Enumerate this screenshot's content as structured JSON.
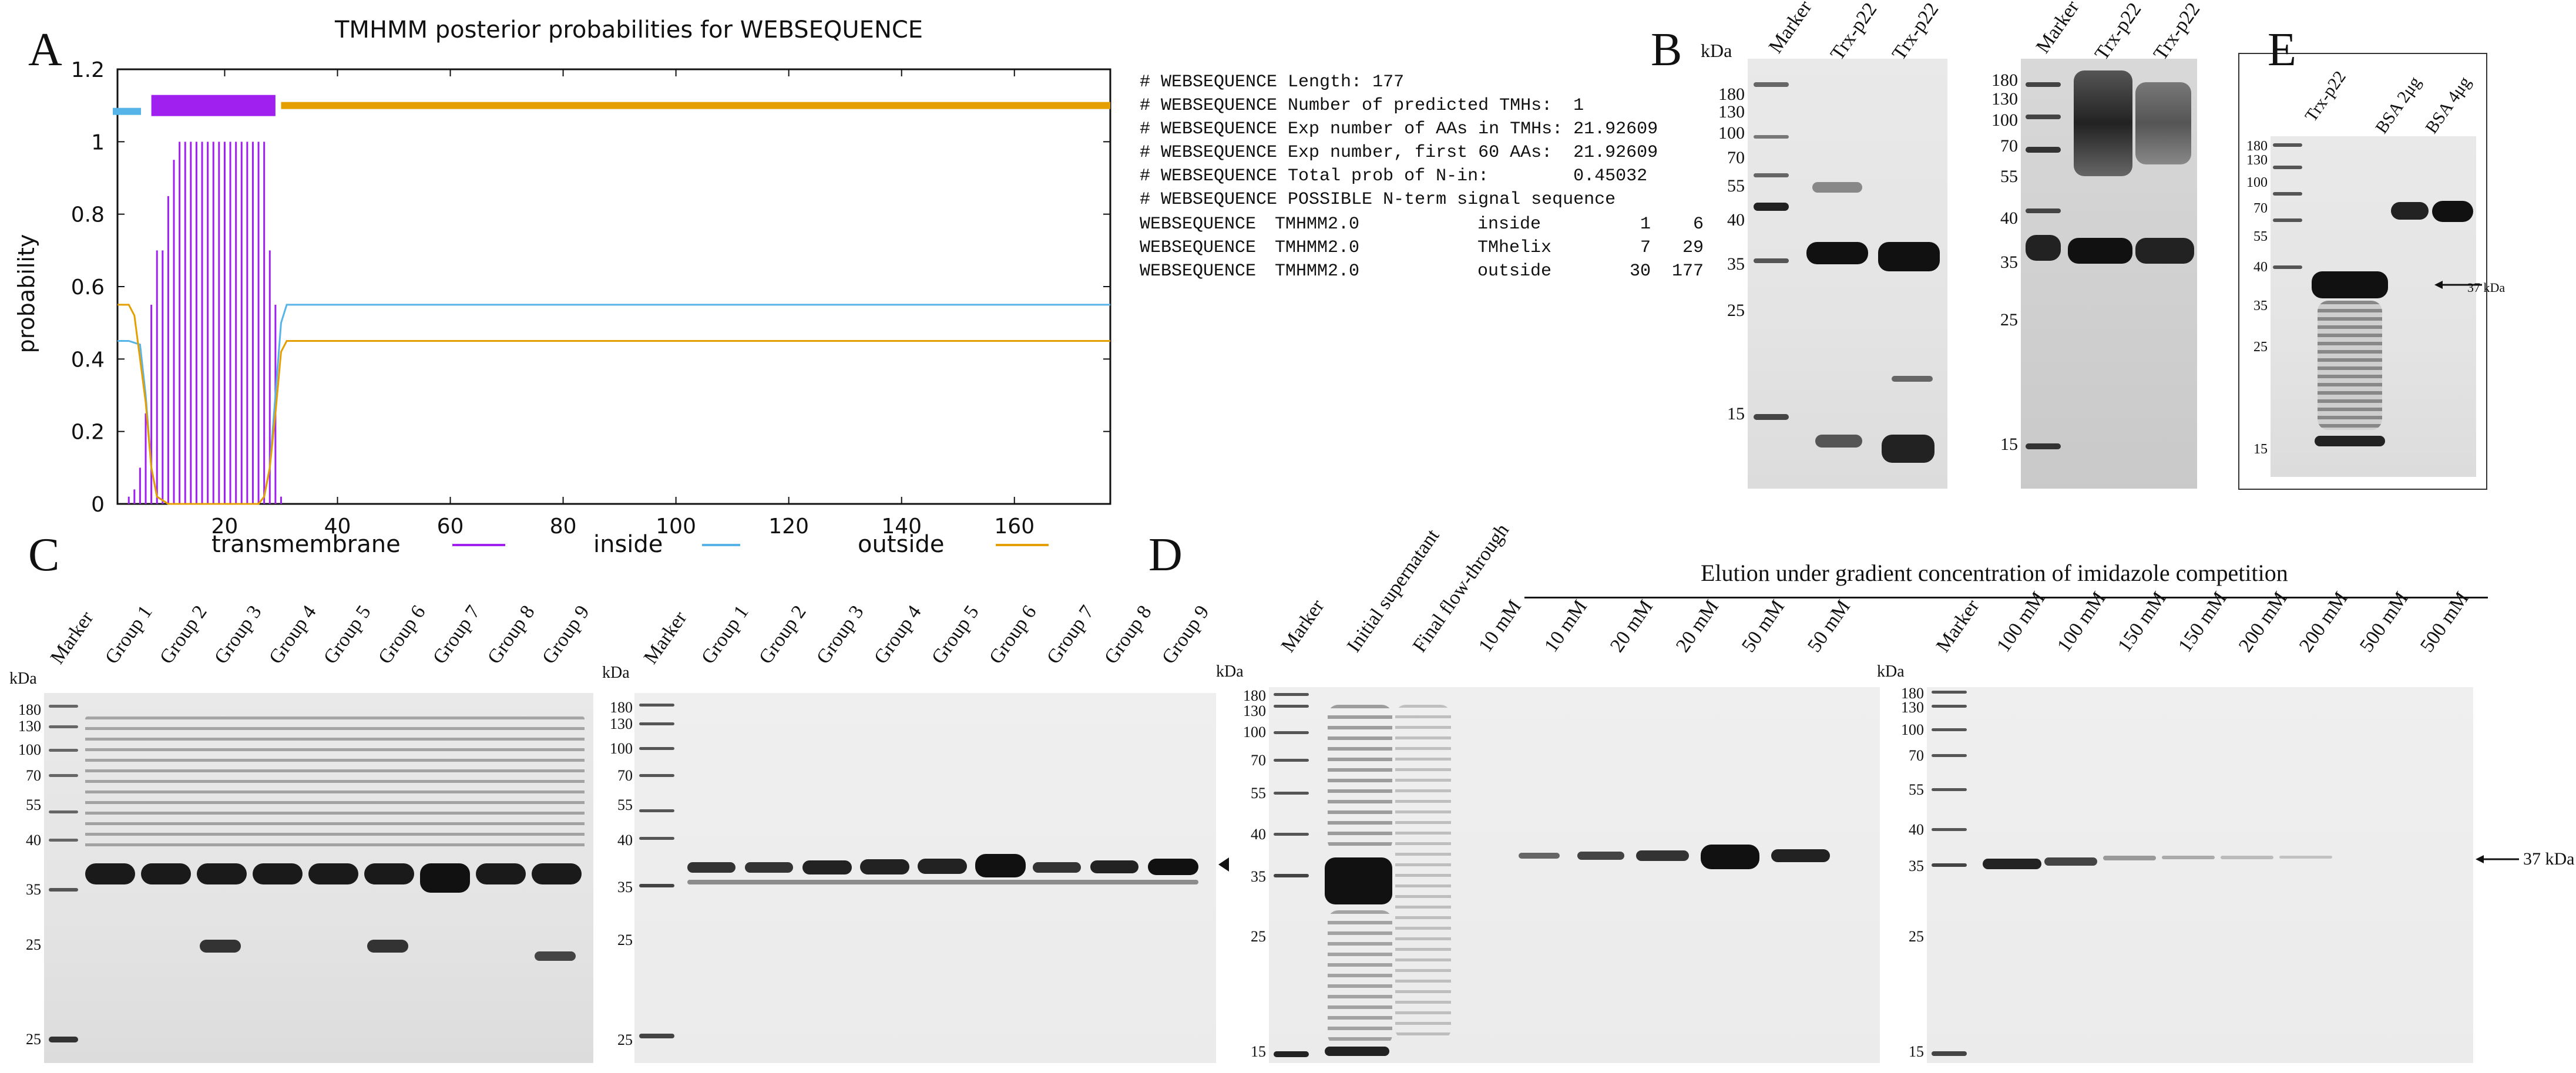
{
  "panels": {
    "A": {
      "letter": "A",
      "title": "TMHMM posterior probabilities for WEBSEQUENCE",
      "ylabel": "probability",
      "legend": [
        {
          "name": "transmembrane",
          "color": "#a020f0"
        },
        {
          "name": "inside",
          "color": "#56b4e9"
        },
        {
          "name": "outside",
          "color": "#e69f00"
        }
      ],
      "info_lines": [
        "# WEBSEQUENCE Length: 177",
        "# WEBSEQUENCE Number of predicted TMHs:  1",
        "# WEBSEQUENCE Exp number of AAs in TMHs: 21.92609",
        "# WEBSEQUENCE Exp number, first 60 AAs:  21.92609",
        "# WEBSEQUENCE Total prob of N-in:        0.45032",
        "# WEBSEQUENCE POSSIBLE N-term signal sequence"
      ],
      "topology_rows": [
        {
          "seq": "WEBSEQUENCE",
          "method": "TMHMM2.0",
          "region": "inside",
          "start": "1",
          "end": "6"
        },
        {
          "seq": "WEBSEQUENCE",
          "method": "TMHMM2.0",
          "region": "TMhelix",
          "start": "7",
          "end": "29"
        },
        {
          "seq": "WEBSEQUENCE",
          "method": "TMHMM2.0",
          "region": "outside",
          "start": "30",
          "end": "177"
        }
      ]
    },
    "B": {
      "letter": "B",
      "kda": "kDa",
      "lanes": [
        "Marker",
        "Trx-p22",
        "Trx-p22"
      ],
      "mw_left": [
        "180",
        "130",
        "100",
        "70",
        "55",
        "40",
        "35",
        "25",
        "15"
      ],
      "mw_right": [
        "180",
        "130",
        "100",
        "70",
        "55",
        "40",
        "35",
        "25",
        "15"
      ]
    },
    "E": {
      "letter": "E",
      "lanes": [
        "Trx-p22",
        "BSA 2μg",
        "BSA 4μg"
      ],
      "mw": [
        "180",
        "130",
        "100",
        "70",
        "55",
        "40",
        "35",
        "25",
        "15"
      ],
      "arrow_label": "37 kDa"
    },
    "C": {
      "letter": "C",
      "kda": "kDa",
      "lanes": [
        "Marker",
        "Group 1",
        "Group 2",
        "Group 3",
        "Group 4",
        "Group 5",
        "Group 6",
        "Group 7",
        "Group 8",
        "Group 9"
      ],
      "mw": [
        "180",
        "130",
        "100",
        "70",
        "55",
        "40",
        "35",
        "25",
        "25"
      ],
      "mw2": [
        "180",
        "130",
        "100",
        "70",
        "55",
        "40",
        "35",
        "25",
        "25"
      ]
    },
    "D": {
      "letter": "D",
      "kda": "kDa",
      "header": "Elution under gradient concentration of  imidazole competition",
      "lanes_left": [
        "Marker",
        "Initial supernatant",
        "Final flow-through",
        "10 mM",
        "10 mM",
        "20 mM",
        "20 mM",
        "50 mM",
        "50 mM"
      ],
      "lanes_right": [
        "Marker",
        "100 mM",
        "100 mM",
        "150 mM",
        "150 mM",
        "200 mM",
        "200 mM",
        "500 mM",
        "500 mM"
      ],
      "mw_left": [
        "180",
        "130",
        "100",
        "70",
        "55",
        "40",
        "35",
        "25",
        "15"
      ],
      "mw_right": [
        "180",
        "130",
        "100",
        "70",
        "55",
        "40",
        "35",
        "25",
        "15"
      ],
      "arrow_label": "37 kDa"
    }
  },
  "chart_data": {
    "type": "line",
    "title": "TMHMM posterior probabilities for WEBSEQUENCE",
    "xlabel": "",
    "ylabel": "probability",
    "xlim": [
      1,
      177
    ],
    "ylim": [
      0,
      1.2
    ],
    "xticks": [
      20,
      40,
      60,
      80,
      100,
      120,
      140,
      160
    ],
    "yticks": [
      0,
      0.2,
      0.4,
      0.6,
      0.8,
      1,
      1.2
    ],
    "series": [
      {
        "name": "transmembrane",
        "color": "#a020f0",
        "type": "bar",
        "x": [
          3,
          4,
          5,
          6,
          7,
          8,
          9,
          10,
          11,
          12,
          13,
          14,
          15,
          16,
          17,
          18,
          19,
          20,
          21,
          22,
          23,
          24,
          25,
          26,
          27,
          28,
          29,
          30
        ],
        "values": [
          0.02,
          0.04,
          0.1,
          0.25,
          0.55,
          0.7,
          0.7,
          0.85,
          0.95,
          1,
          1,
          1,
          1,
          1,
          1,
          1,
          1,
          1,
          1,
          1,
          1,
          1,
          1,
          1,
          1,
          0.7,
          0.55,
          0.02
        ]
      },
      {
        "name": "inside",
        "color": "#56b4e9",
        "type": "line",
        "x": [
          1,
          3,
          5,
          6,
          7,
          8,
          10,
          20,
          26,
          27,
          28,
          29,
          30,
          31,
          177
        ],
        "values": [
          0.45,
          0.45,
          0.44,
          0.3,
          0.1,
          0.02,
          0,
          0,
          0,
          0.02,
          0.1,
          0.3,
          0.5,
          0.55,
          0.55
        ]
      },
      {
        "name": "outside",
        "color": "#e69f00",
        "type": "line",
        "x": [
          1,
          3,
          4,
          5,
          6,
          7,
          8,
          10,
          20,
          26,
          27,
          28,
          29,
          30,
          31,
          177
        ],
        "values": [
          0.55,
          0.55,
          0.52,
          0.4,
          0.28,
          0.1,
          0.02,
          0,
          0,
          0,
          0.02,
          0.1,
          0.25,
          0.42,
          0.45,
          0.45
        ]
      }
    ],
    "topology_bar": [
      {
        "region": "inside",
        "start": 1,
        "end": 6,
        "color": "#56b4e9"
      },
      {
        "region": "TMhelix",
        "start": 7,
        "end": 29,
        "color": "#a020f0"
      },
      {
        "region": "outside",
        "start": 30,
        "end": 177,
        "color": "#e69f00"
      }
    ]
  }
}
